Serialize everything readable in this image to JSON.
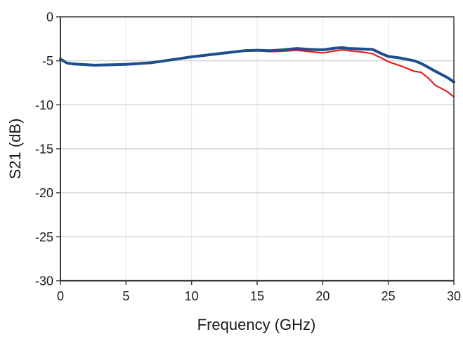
{
  "chart_data": {
    "type": "line",
    "title": "",
    "xlabel": "Frequency (GHz)",
    "ylabel": "S21 (dB)",
    "xlim": [
      0,
      30
    ],
    "ylim": [
      -30,
      0
    ],
    "xticks": [
      0,
      5,
      10,
      15,
      20,
      25,
      30
    ],
    "yticks": [
      0,
      -5,
      -10,
      -15,
      -20,
      -25,
      -30
    ],
    "grid": true,
    "legend": null,
    "series": [
      {
        "name": "S21 trace (red)",
        "color": "#e8221f",
        "x": [
          0,
          0.5,
          1,
          2,
          2.6,
          4,
          5,
          7,
          10,
          12,
          14,
          15,
          16,
          17,
          18,
          19,
          20,
          21,
          21.5,
          22,
          23,
          23.8,
          24.5,
          25,
          26,
          27,
          27.5,
          28,
          28.6,
          29,
          29.5,
          30
        ],
        "values": [
          -4.8,
          -5.2,
          -5.35,
          -5.45,
          -5.5,
          -5.45,
          -5.4,
          -5.2,
          -4.55,
          -4.2,
          -3.9,
          -3.85,
          -3.95,
          -3.9,
          -3.8,
          -3.95,
          -4.1,
          -3.85,
          -3.75,
          -3.85,
          -4.0,
          -4.2,
          -4.7,
          -5.1,
          -5.6,
          -6.2,
          -6.3,
          -6.9,
          -7.8,
          -8.1,
          -8.5,
          -9.1
        ]
      },
      {
        "name": "S21 trace (blue)",
        "color": "#1f4e8c",
        "x": [
          0,
          0.5,
          1,
          2,
          2.6,
          4,
          5,
          7,
          10,
          12,
          14,
          15,
          16,
          17,
          18,
          19,
          20,
          21,
          21.5,
          22,
          23,
          23.8,
          24.5,
          25,
          26,
          27,
          27.5,
          28,
          28.6,
          29,
          29.5,
          30
        ],
        "values": [
          -4.8,
          -5.25,
          -5.35,
          -5.45,
          -5.5,
          -5.45,
          -5.4,
          -5.2,
          -4.55,
          -4.2,
          -3.85,
          -3.8,
          -3.85,
          -3.75,
          -3.6,
          -3.7,
          -3.75,
          -3.55,
          -3.5,
          -3.6,
          -3.65,
          -3.7,
          -4.2,
          -4.5,
          -4.7,
          -5.0,
          -5.3,
          -5.7,
          -6.2,
          -6.5,
          -6.9,
          -7.4
        ]
      }
    ]
  },
  "axes": {
    "x_title": "Frequency (GHz)",
    "y_title": "S21 (dB)",
    "x_tick_labels": [
      "0",
      "5",
      "10",
      "15",
      "20",
      "25",
      "30"
    ],
    "y_tick_labels": [
      "0",
      "-5",
      "-10",
      "-15",
      "-20",
      "-25",
      "-30"
    ]
  },
  "colors": {
    "axis": "#3a3a3a",
    "grid_h": "#c8c8c8",
    "grid_v": "#e4e4e4",
    "red_series": "#e8221f",
    "blue_series": "#1f4e8c"
  }
}
